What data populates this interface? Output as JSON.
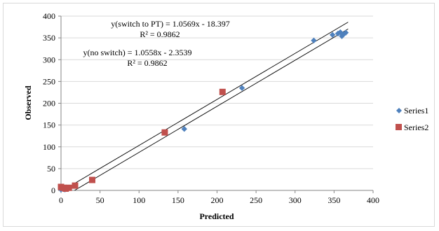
{
  "chart_data": {
    "type": "scatter",
    "title": "",
    "xlabel": "Predicted",
    "ylabel": "Observed",
    "xlim": [
      0,
      400
    ],
    "ylim": [
      0,
      400
    ],
    "xticks": [
      0,
      50,
      100,
      150,
      200,
      250,
      300,
      350,
      400
    ],
    "yticks": [
      0,
      50,
      100,
      150,
      200,
      250,
      300,
      350,
      400
    ],
    "grid": "horizontal",
    "legend_position": "right",
    "series": [
      {
        "name": "Series1",
        "marker": "diamond",
        "color": "#4f81bd",
        "points": [
          [
            0,
            2
          ],
          [
            3,
            3
          ],
          [
            5,
            2
          ],
          [
            8,
            4
          ],
          [
            158,
            141
          ],
          [
            232,
            235
          ],
          [
            324,
            344
          ],
          [
            348,
            357
          ],
          [
            355,
            360
          ],
          [
            358,
            363
          ],
          [
            360,
            354
          ],
          [
            362,
            358
          ],
          [
            365,
            362
          ]
        ]
      },
      {
        "name": "Series2",
        "marker": "square",
        "color": "#c0504d",
        "points": [
          [
            0,
            8
          ],
          [
            3,
            6
          ],
          [
            6,
            4
          ],
          [
            10,
            6
          ],
          [
            18,
            11
          ],
          [
            40,
            24
          ],
          [
            133,
            133
          ],
          [
            207,
            226
          ]
        ]
      }
    ],
    "trendlines": [
      {
        "slope": 1.0569,
        "intercept": -18.397,
        "x_range": [
          2,
          368
        ]
      },
      {
        "slope": 1.0558,
        "intercept": -2.3539,
        "x_range": [
          2,
          368
        ]
      }
    ],
    "annotations": [
      "y(switch to PT) = 1.0569x - 18.397",
      "R² = 0.9862",
      "y(no switch) = 1.0558x - 2.3539",
      "R² = 0.9862"
    ]
  }
}
